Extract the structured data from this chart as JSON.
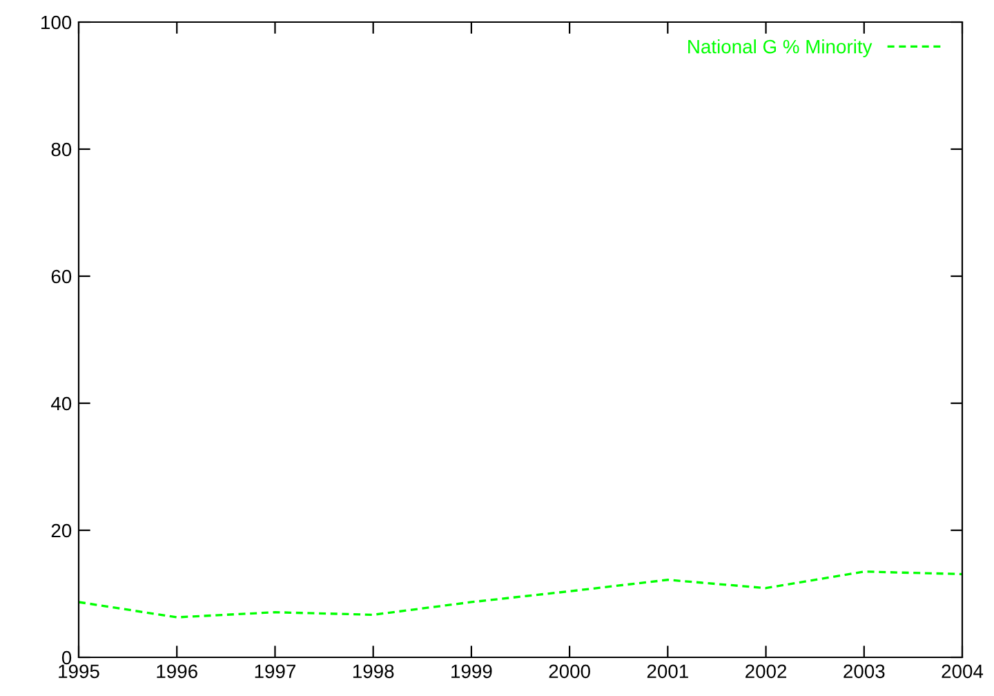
{
  "chart_data": {
    "type": "line",
    "x": [
      1995,
      1996,
      1997,
      1998,
      1999,
      2000,
      2001,
      2002,
      2003,
      2004
    ],
    "series": [
      {
        "name": "National G % Minority",
        "color": "#00ff00",
        "values": [
          8.7,
          6.3,
          7.1,
          6.7,
          8.7,
          10.4,
          12.2,
          10.9,
          13.5,
          13.1
        ]
      }
    ],
    "xlim": [
      1995,
      2004
    ],
    "xticks": [
      1995,
      1996,
      1997,
      1998,
      1999,
      2000,
      2001,
      2002,
      2003,
      2004
    ],
    "ylim": [
      0,
      100
    ],
    "yticks": [
      0,
      20,
      40,
      60,
      80,
      100
    ],
    "grid": false,
    "legend": "top right",
    "line_style": "dashed",
    "marker": "none"
  }
}
